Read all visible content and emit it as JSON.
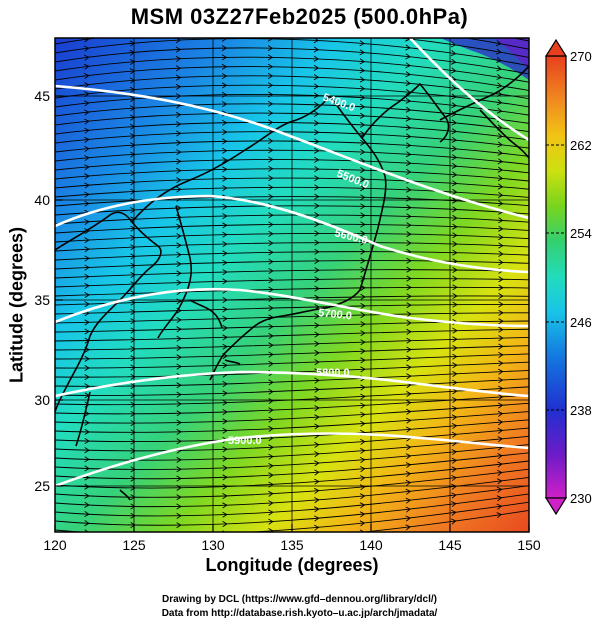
{
  "title": "MSM 03Z27Feb2025 (500.0hPa)",
  "x_axis": {
    "label": "Longitude (degrees)",
    "ticks": [
      "120",
      "125",
      "130",
      "135",
      "140",
      "145",
      "150"
    ],
    "range": [
      120,
      150
    ]
  },
  "y_axis": {
    "label": "Latitude  (degrees)",
    "ticks": [
      "25",
      "30",
      "35",
      "40",
      "45"
    ],
    "range": [
      22.4,
      47.6
    ]
  },
  "colorbar": {
    "range": [
      230,
      270
    ],
    "tick_labels": [
      "270",
      "262",
      "254",
      "246",
      "238",
      "230"
    ],
    "colors": [
      "#e030c0",
      "#8a1cc8",
      "#2a2ad0",
      "#1478e0",
      "#18b8e8",
      "#20e0c0",
      "#30d070",
      "#70d020",
      "#c8e010",
      "#f0d010",
      "#f09020",
      "#e84020"
    ]
  },
  "contours": [
    {
      "label": "5400.0"
    },
    {
      "label": "5500.0"
    },
    {
      "label": "5600.0"
    },
    {
      "label": "5700.0"
    },
    {
      "label": "5800.0"
    },
    {
      "label": "5900.0"
    }
  ],
  "credits": {
    "line1": "Drawing by DCL (https://www.gfd–dennou.org/library/dcl/)",
    "line2": "Data from http://database.rish.kyoto–u.ac.jp/arch/jmadata/"
  }
}
